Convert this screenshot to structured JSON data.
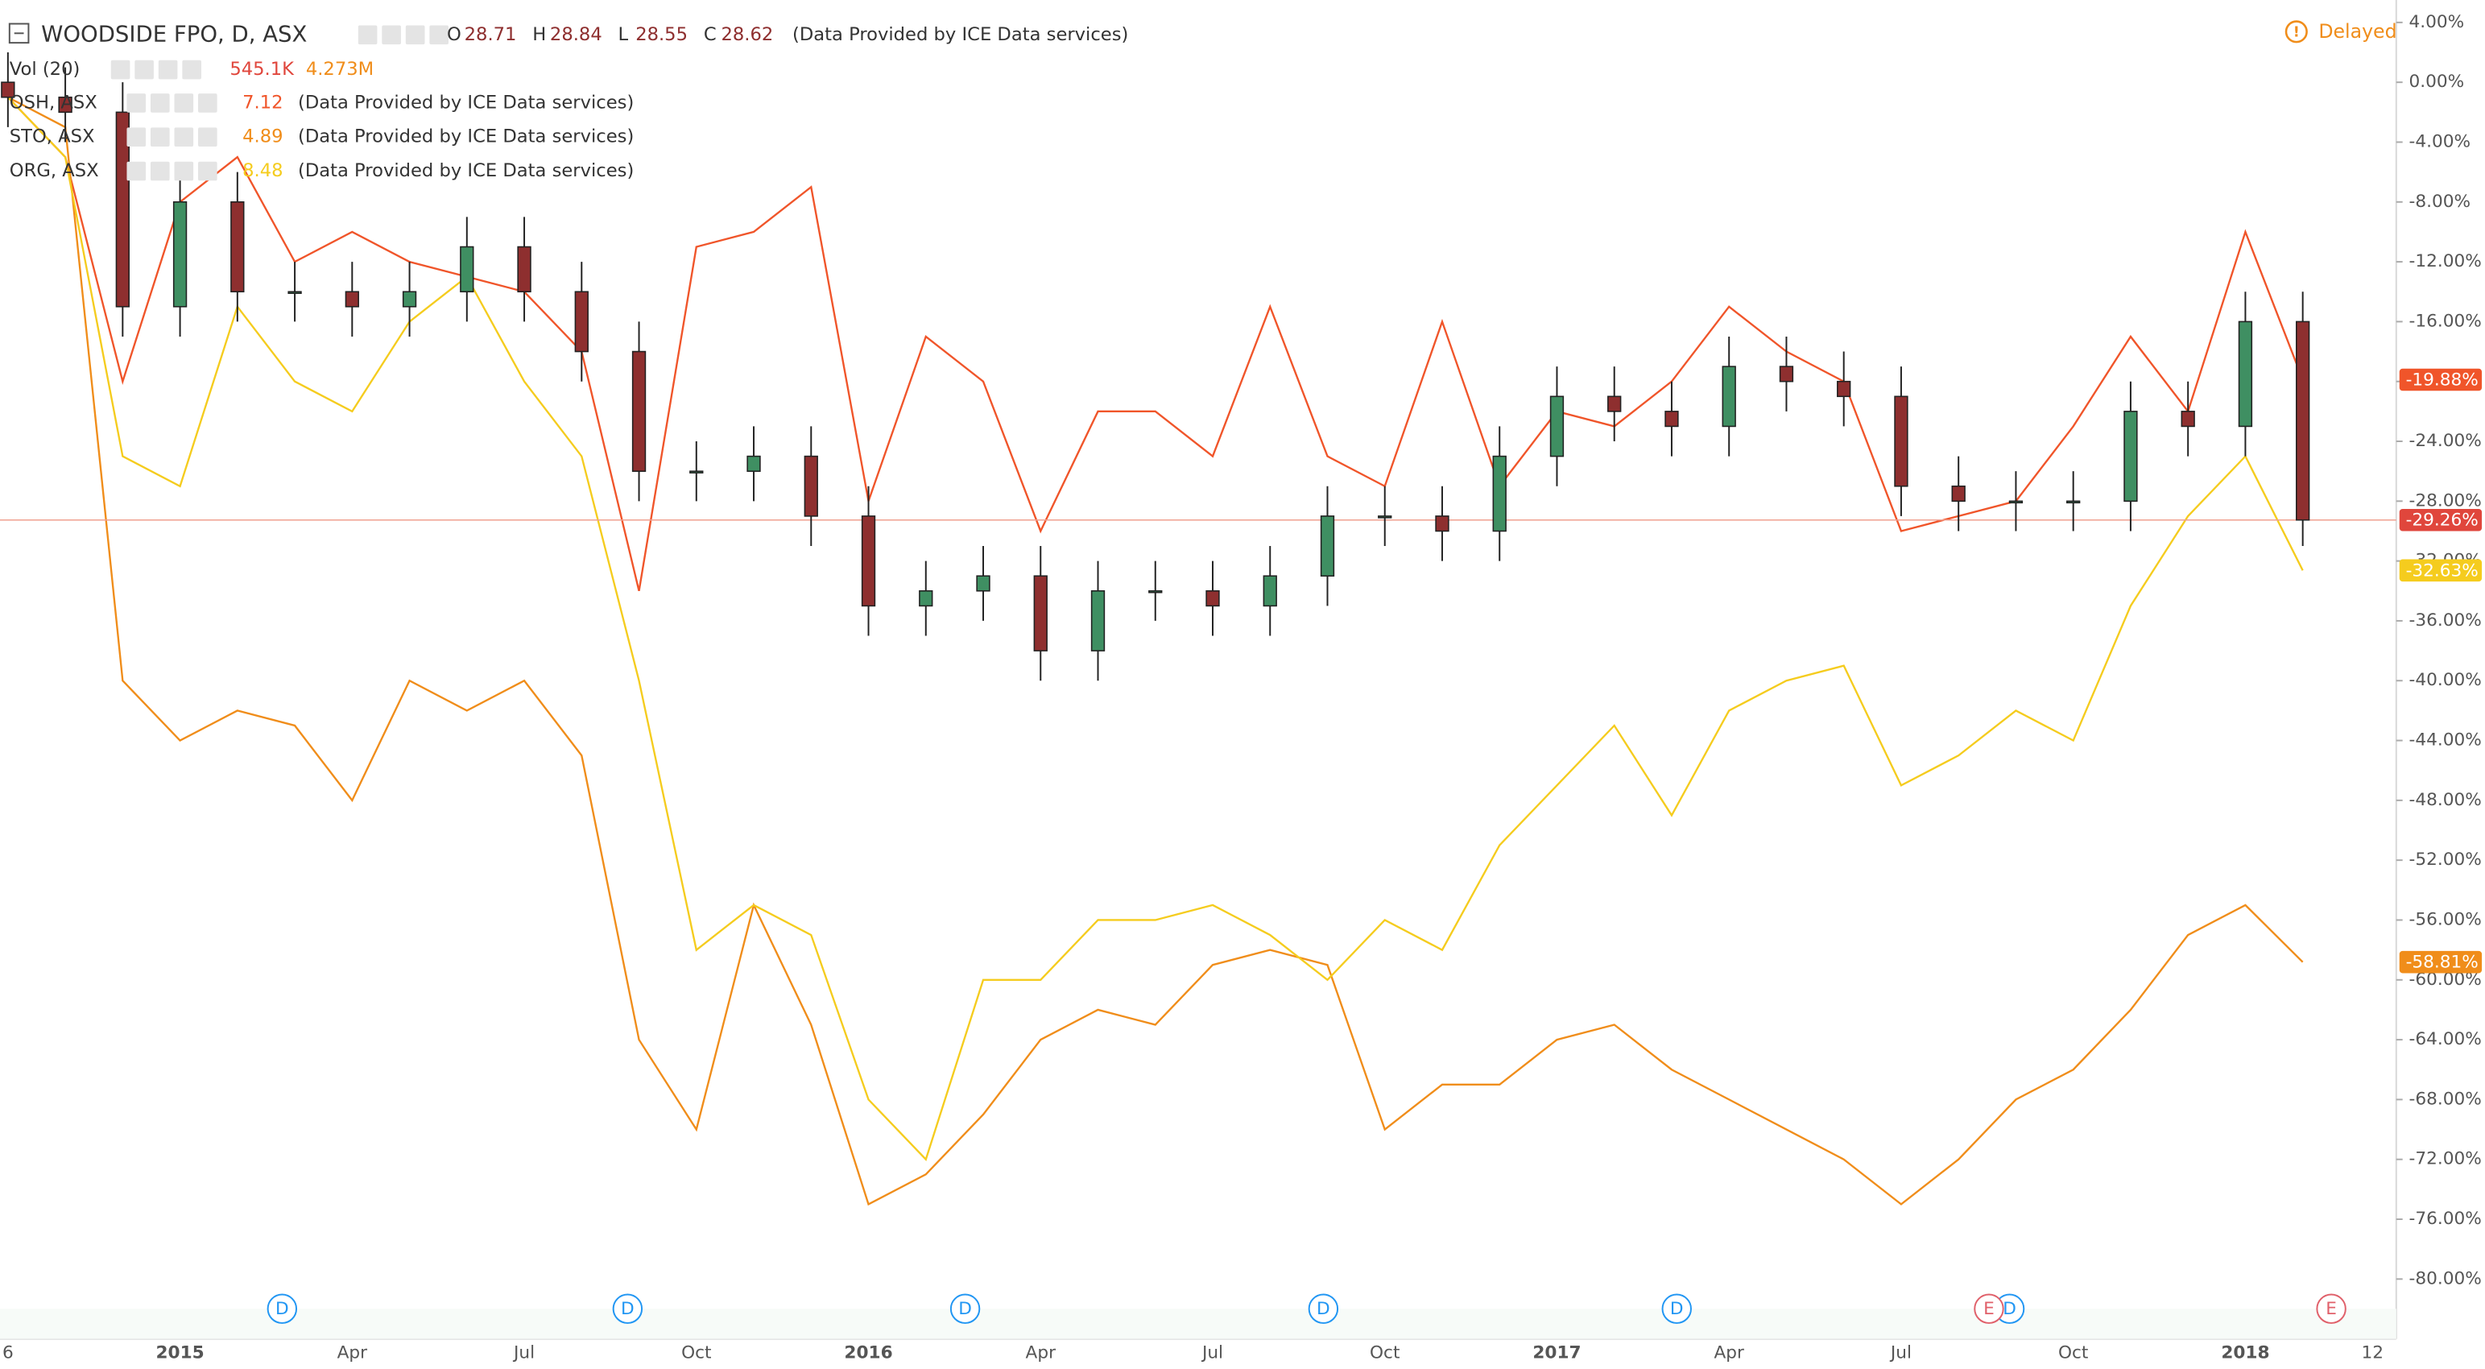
{
  "chart_data": {
    "type": "candlestick",
    "title": "WOODSIDE FPO, D, ASX",
    "ohlc_legend": [
      {
        "key": "O",
        "value": 28.71
      },
      {
        "key": "H",
        "value": 28.84
      },
      {
        "key": "L",
        "value": 28.55
      },
      {
        "key": "C",
        "value": 28.62
      }
    ],
    "source": "(Data Provided by ICE Data services)",
    "status": "Delayed",
    "volume_legend": {
      "name": "Vol (20)",
      "values": [
        "545.1K",
        "4.273M"
      ]
    },
    "categories": [
      "6",
      null,
      null,
      "2015",
      null,
      null,
      "Apr",
      null,
      null,
      "Jul",
      null,
      null,
      "Oct",
      null,
      null,
      "2016",
      null,
      null,
      "Apr",
      null,
      null,
      "Jul",
      null,
      null,
      "Oct",
      null,
      null,
      "2017",
      null,
      null,
      "Apr",
      null,
      null,
      "Jul",
      null,
      null,
      "Oct",
      null,
      null,
      "2018",
      "12"
    ],
    "ylim": [
      -84,
      5.5
    ],
    "yticks": [
      {
        "value": 4,
        "label": "4.00%"
      },
      {
        "value": 0,
        "label": "0.00%"
      },
      {
        "value": -4,
        "label": "-4.00%"
      },
      {
        "value": -8,
        "label": "-8.00%"
      },
      {
        "value": -12,
        "label": "-12.00%"
      },
      {
        "value": -16,
        "label": "-16.00%"
      },
      {
        "value": -20,
        "label": "-20.00%"
      },
      {
        "value": -24,
        "label": "-24.00%"
      },
      {
        "value": -28,
        "label": "-28.00%"
      },
      {
        "value": -32,
        "label": "-32.00%"
      },
      {
        "value": -36,
        "label": "-36.00%"
      },
      {
        "value": -40,
        "label": "-40.00%"
      },
      {
        "value": -44,
        "label": "-44.00%"
      },
      {
        "value": -48,
        "label": "-48.00%"
      },
      {
        "value": -52,
        "label": "-52.00%"
      },
      {
        "value": -56,
        "label": "-56.00%"
      },
      {
        "value": -60,
        "label": "-60.00%"
      },
      {
        "value": -64,
        "label": "-64.00%"
      },
      {
        "value": -68,
        "label": "-68.00%"
      },
      {
        "value": -72,
        "label": "-72.00%"
      },
      {
        "value": -76,
        "label": "-76.00%"
      },
      {
        "value": -80,
        "label": "-80.00%"
      }
    ],
    "candles": {
      "up_color": "#3f8f62",
      "down_color": "#8e2f2f",
      "label_color": "#e0463c",
      "open": [
        0,
        -1,
        -2,
        -15,
        -8,
        -14,
        -14,
        -15,
        -14,
        -11,
        -14,
        -18,
        -26,
        -26,
        -25,
        -29,
        -35,
        -34,
        -33,
        -38,
        -34,
        -34,
        -35,
        -33,
        -29,
        -29,
        -30,
        -25,
        -21,
        -22,
        -23,
        -19,
        -20,
        -21,
        -27,
        -28,
        -28,
        -28,
        -22,
        -23,
        -16
      ],
      "high": [
        2,
        1,
        0,
        -6,
        -6,
        -12,
        -12,
        -12,
        -9,
        -9,
        -12,
        -16,
        -24,
        -23,
        -23,
        -27,
        -32,
        -31,
        -31,
        -32,
        -32,
        -32,
        -31,
        -27,
        -27,
        -27,
        -23,
        -19,
        -19,
        -20,
        -17,
        -17,
        -18,
        -19,
        -25,
        -26,
        -26,
        -20,
        -20,
        -14,
        -14
      ],
      "low": [
        -3,
        -4,
        -17,
        -17,
        -16,
        -16,
        -17,
        -17,
        -16,
        -16,
        -20,
        -28,
        -28,
        -28,
        -31,
        -37,
        -37,
        -36,
        -40,
        -40,
        -36,
        -37,
        -37,
        -35,
        -31,
        -32,
        -32,
        -27,
        -24,
        -25,
        -25,
        -22,
        -23,
        -29,
        -30,
        -30,
        -30,
        -30,
        -25,
        -25,
        -31
      ],
      "close": [
        -1,
        -2,
        -15,
        -8,
        -14,
        -14,
        -15,
        -14,
        -11,
        -14,
        -18,
        -26,
        -26,
        -25,
        -29,
        -35,
        -34,
        -33,
        -38,
        -34,
        -34,
        -35,
        -33,
        -29,
        -29,
        -30,
        -25,
        -21,
        -22,
        -23,
        -19,
        -20,
        -21,
        -27,
        -28,
        -28,
        -28,
        -22,
        -23,
        -16,
        -29.26
      ],
      "value_labels": [
        null,
        null,
        null,
        null,
        null,
        null,
        null,
        null,
        null,
        null,
        null,
        null,
        null,
        null,
        null,
        null,
        null,
        null,
        null,
        null,
        null,
        null,
        null,
        null,
        null,
        null,
        null,
        null,
        null,
        null,
        null,
        null,
        null,
        null,
        null,
        null,
        null,
        null,
        null,
        null,
        "-29.26%"
      ]
    },
    "series": [
      {
        "name": "OSH, ASX",
        "legend_value": 7.12,
        "color": "#f0552a",
        "values": [
          -1,
          -5,
          -20,
          -8,
          -5,
          -12,
          -10,
          -12,
          -13,
          -14,
          -18,
          -34,
          -11,
          -10,
          -7,
          -28,
          -17,
          -20,
          -30,
          -22,
          -22,
          -25,
          -15,
          -25,
          -27,
          -16,
          -27,
          -22,
          -23,
          -20,
          -15,
          -18,
          -20,
          -30,
          -29,
          -28,
          -23,
          -17,
          -22,
          -10,
          -19.88
        ],
        "value_labels": [
          null,
          null,
          null,
          null,
          null,
          null,
          null,
          null,
          null,
          null,
          null,
          null,
          null,
          null,
          null,
          null,
          null,
          null,
          null,
          null,
          null,
          null,
          null,
          null,
          null,
          null,
          null,
          null,
          null,
          null,
          null,
          null,
          null,
          null,
          null,
          null,
          null,
          null,
          null,
          null,
          "-19.88%"
        ]
      },
      {
        "name": "STO, ASX",
        "legend_value": 4.89,
        "color": "#f08d1a",
        "values": [
          -1,
          -3,
          -40,
          -44,
          -42,
          -43,
          -48,
          -40,
          -42,
          -40,
          -45,
          -64,
          -70,
          -55,
          -63,
          -75,
          -73,
          -69,
          -64,
          -62,
          -63,
          -59,
          -58,
          -59,
          -70,
          -67,
          -67,
          -64,
          -63,
          -66,
          -68,
          -70,
          -72,
          -75,
          -72,
          -68,
          -66,
          -62,
          -57,
          -55,
          -58.81
        ],
        "value_labels": [
          null,
          null,
          null,
          null,
          null,
          null,
          null,
          null,
          null,
          null,
          null,
          null,
          null,
          null,
          null,
          null,
          null,
          null,
          null,
          null,
          null,
          null,
          null,
          null,
          null,
          null,
          null,
          null,
          null,
          null,
          null,
          null,
          null,
          null,
          null,
          null,
          null,
          null,
          null,
          null,
          "-58.81%"
        ]
      },
      {
        "name": "ORG, ASX",
        "legend_value": 8.48,
        "color": "#f5cc1e",
        "values": [
          -1,
          -5,
          -25,
          -27,
          -15,
          -20,
          -22,
          -16,
          -13,
          -20,
          -25,
          -40,
          -58,
          -55,
          -57,
          -68,
          -72,
          -60,
          -60,
          -56,
          -56,
          -55,
          -57,
          -60,
          -56,
          -58,
          -51,
          -47,
          -43,
          -49,
          -42,
          -40,
          -39,
          -47,
          -45,
          -42,
          -44,
          -35,
          -29,
          -25,
          -32.63
        ],
        "value_labels": [
          null,
          null,
          null,
          null,
          null,
          null,
          null,
          null,
          null,
          null,
          null,
          null,
          null,
          null,
          null,
          null,
          null,
          null,
          null,
          null,
          null,
          null,
          null,
          null,
          null,
          null,
          null,
          null,
          null,
          null,
          null,
          null,
          null,
          null,
          null,
          null,
          null,
          null,
          null,
          null,
          "-32.63%"
        ]
      }
    ],
    "events": [
      {
        "label": "D"
      },
      {
        "label": "D"
      },
      {
        "label": "D"
      },
      {
        "label": "D"
      },
      {
        "label": "D"
      },
      {
        "label": "D"
      },
      {
        "label": "E"
      },
      {
        "label": "E"
      }
    ]
  }
}
